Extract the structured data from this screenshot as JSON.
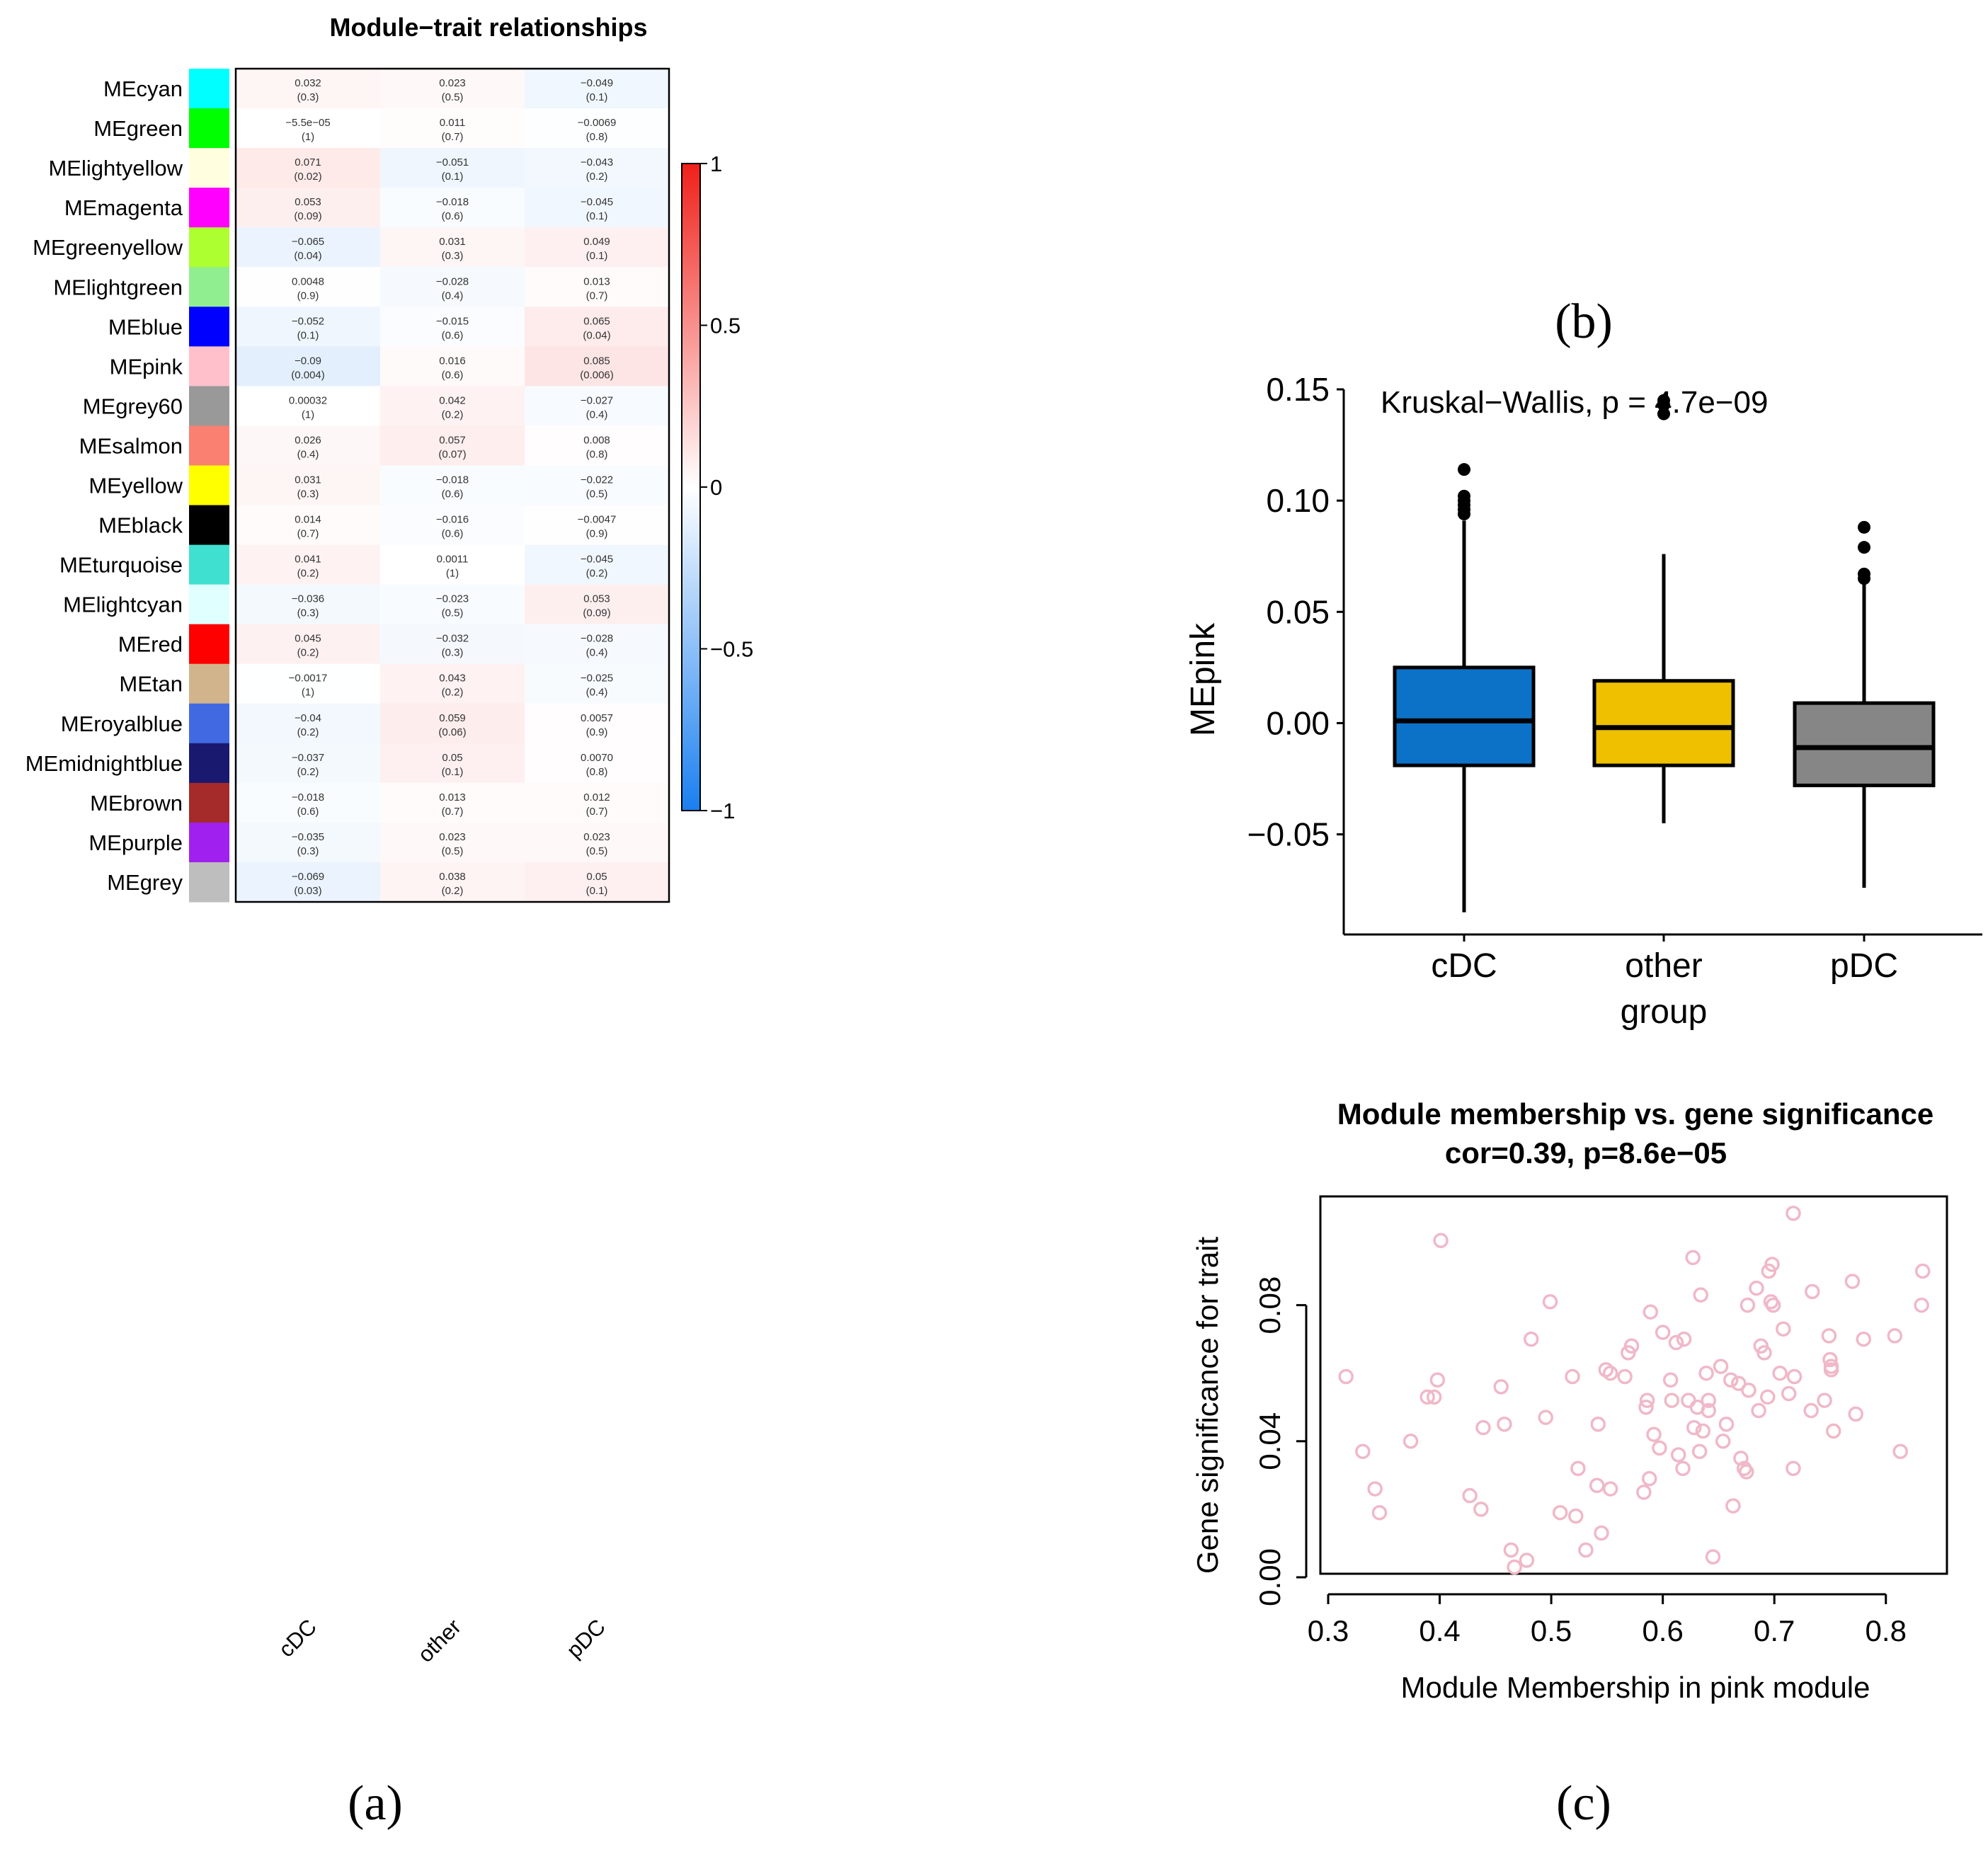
{
  "panels": {
    "a": "(a)",
    "b": "(b)",
    "c": "(c)"
  },
  "heatmap": {
    "title": "Module−trait relationships",
    "columns": [
      "cDC",
      "other",
      "pDC"
    ],
    "colorbar_ticks": [
      "1",
      "0.5",
      "0",
      "−0.5",
      "−1"
    ],
    "colorbar_values": [
      1,
      0.5,
      0,
      -0.5,
      -1
    ],
    "scale_colors": {
      "negative": "#1a7ff0",
      "zero": "#ffffff",
      "positive": "#f0201a"
    },
    "rows": [
      {
        "module": "MEcyan",
        "color": "#00ffff",
        "cells": [
          [
            "0.032",
            "(0.3)"
          ],
          [
            "0.023",
            "(0.5)"
          ],
          [
            "−0.049",
            "(0.1)"
          ]
        ],
        "values": [
          0.032,
          0.023,
          -0.049
        ]
      },
      {
        "module": "MEgreen",
        "color": "#00ff00",
        "cells": [
          [
            "−5.5e−05",
            "(1)"
          ],
          [
            "0.011",
            "(0.7)"
          ],
          [
            "−0.0069",
            "(0.8)"
          ]
        ],
        "values": [
          -5.5e-05,
          0.011,
          -0.0069
        ]
      },
      {
        "module": "MElightyellow",
        "color": "#ffffe0",
        "cells": [
          [
            "0.071",
            "(0.02)"
          ],
          [
            "−0.051",
            "(0.1)"
          ],
          [
            "−0.043",
            "(0.2)"
          ]
        ],
        "values": [
          0.071,
          -0.051,
          -0.043
        ]
      },
      {
        "module": "MEmagenta",
        "color": "#ff00ff",
        "cells": [
          [
            "0.053",
            "(0.09)"
          ],
          [
            "−0.018",
            "(0.6)"
          ],
          [
            "−0.045",
            "(0.1)"
          ]
        ],
        "values": [
          0.053,
          -0.018,
          -0.045
        ]
      },
      {
        "module": "MEgreenyellow",
        "color": "#adff2f",
        "cells": [
          [
            "−0.065",
            "(0.04)"
          ],
          [
            "0.031",
            "(0.3)"
          ],
          [
            "0.049",
            "(0.1)"
          ]
        ],
        "values": [
          -0.065,
          0.031,
          0.049
        ]
      },
      {
        "module": "MElightgreen",
        "color": "#90ee90",
        "cells": [
          [
            "0.0048",
            "(0.9)"
          ],
          [
            "−0.028",
            "(0.4)"
          ],
          [
            "0.013",
            "(0.7)"
          ]
        ],
        "values": [
          0.0048,
          -0.028,
          0.013
        ]
      },
      {
        "module": "MEblue",
        "color": "#0000ff",
        "cells": [
          [
            "−0.052",
            "(0.1)"
          ],
          [
            "−0.015",
            "(0.6)"
          ],
          [
            "0.065",
            "(0.04)"
          ]
        ],
        "values": [
          -0.052,
          -0.015,
          0.065
        ]
      },
      {
        "module": "MEpink",
        "color": "#ffc0cb",
        "cells": [
          [
            "−0.09",
            "(0.004)"
          ],
          [
            "0.016",
            "(0.6)"
          ],
          [
            "0.085",
            "(0.006)"
          ]
        ],
        "values": [
          -0.09,
          0.016,
          0.085
        ]
      },
      {
        "module": "MEgrey60",
        "color": "#999999",
        "cells": [
          [
            "0.00032",
            "(1)"
          ],
          [
            "0.042",
            "(0.2)"
          ],
          [
            "−0.027",
            "(0.4)"
          ]
        ],
        "values": [
          0.00032,
          0.042,
          -0.027
        ]
      },
      {
        "module": "MEsalmon",
        "color": "#fa8072",
        "cells": [
          [
            "0.026",
            "(0.4)"
          ],
          [
            "0.057",
            "(0.07)"
          ],
          [
            "0.008",
            "(0.8)"
          ]
        ],
        "values": [
          0.026,
          0.057,
          0.008
        ]
      },
      {
        "module": "MEyellow",
        "color": "#ffff00",
        "cells": [
          [
            "0.031",
            "(0.3)"
          ],
          [
            "−0.018",
            "(0.6)"
          ],
          [
            "−0.022",
            "(0.5)"
          ]
        ],
        "values": [
          0.031,
          -0.018,
          -0.022
        ]
      },
      {
        "module": "MEblack",
        "color": "#000000",
        "cells": [
          [
            "0.014",
            "(0.7)"
          ],
          [
            "−0.016",
            "(0.6)"
          ],
          [
            "−0.0047",
            "(0.9)"
          ]
        ],
        "values": [
          0.014,
          -0.016,
          -0.0047
        ]
      },
      {
        "module": "MEturquoise",
        "color": "#40e0d0",
        "cells": [
          [
            "0.041",
            "(0.2)"
          ],
          [
            "0.0011",
            "(1)"
          ],
          [
            "−0.045",
            "(0.2)"
          ]
        ],
        "values": [
          0.041,
          0.0011,
          -0.045
        ]
      },
      {
        "module": "MElightcyan",
        "color": "#e0ffff",
        "cells": [
          [
            "−0.036",
            "(0.3)"
          ],
          [
            "−0.023",
            "(0.5)"
          ],
          [
            "0.053",
            "(0.09)"
          ]
        ],
        "values": [
          -0.036,
          -0.023,
          0.053
        ]
      },
      {
        "module": "MEred",
        "color": "#ff0000",
        "cells": [
          [
            "0.045",
            "(0.2)"
          ],
          [
            "−0.032",
            "(0.3)"
          ],
          [
            "−0.028",
            "(0.4)"
          ]
        ],
        "values": [
          0.045,
          -0.032,
          -0.028
        ]
      },
      {
        "module": "MEtan",
        "color": "#d2b48c",
        "cells": [
          [
            "−0.0017",
            "(1)"
          ],
          [
            "0.043",
            "(0.2)"
          ],
          [
            "−0.025",
            "(0.4)"
          ]
        ],
        "values": [
          -0.0017,
          0.043,
          -0.025
        ]
      },
      {
        "module": "MEroyalblue",
        "color": "#4169e1",
        "cells": [
          [
            "−0.04",
            "(0.2)"
          ],
          [
            "0.059",
            "(0.06)"
          ],
          [
            "0.0057",
            "(0.9)"
          ]
        ],
        "values": [
          -0.04,
          0.059,
          0.0057
        ]
      },
      {
        "module": "MEmidnightblue",
        "color": "#191970",
        "cells": [
          [
            "−0.037",
            "(0.2)"
          ],
          [
            "0.05",
            "(0.1)"
          ],
          [
            "0.0070",
            "(0.8)"
          ]
        ],
        "values": [
          -0.037,
          0.05,
          0.007
        ]
      },
      {
        "module": "MEbrown",
        "color": "#a52a2a",
        "cells": [
          [
            "−0.018",
            "(0.6)"
          ],
          [
            "0.013",
            "(0.7)"
          ],
          [
            "0.012",
            "(0.7)"
          ]
        ],
        "values": [
          -0.018,
          0.013,
          0.012
        ]
      },
      {
        "module": "MEpurple",
        "color": "#a020f0",
        "cells": [
          [
            "−0.035",
            "(0.3)"
          ],
          [
            "0.023",
            "(0.5)"
          ],
          [
            "0.023",
            "(0.5)"
          ]
        ],
        "values": [
          -0.035,
          0.023,
          0.023
        ]
      },
      {
        "module": "MEgrey",
        "color": "#bebebe",
        "cells": [
          [
            "−0.069",
            "(0.03)"
          ],
          [
            "0.038",
            "(0.2)"
          ],
          [
            "0.05",
            "(0.1)"
          ]
        ],
        "values": [
          -0.069,
          0.038,
          0.05
        ]
      }
    ]
  },
  "chart_data": [
    {
      "type": "heatmap",
      "title": "Module−trait relationships",
      "x_categories": [
        "cDC",
        "other",
        "pDC"
      ],
      "colorbar_range": [
        -1,
        1
      ]
    },
    {
      "type": "box",
      "annotation": "Kruskal−Wallis, p = 4.7e−09",
      "xlabel": "group",
      "ylabel": "MEpink",
      "ylim": [
        -0.095,
        0.15
      ],
      "yticks": [
        0.15,
        0.1,
        0.05,
        0.0,
        -0.05
      ],
      "ytick_labels": [
        "0.15",
        "0.10",
        "0.05",
        "0.00",
        "−0.05"
      ],
      "categories": [
        "cDC",
        "other",
        "pDC"
      ],
      "boxes": [
        {
          "name": "cDC",
          "color": "#0c72c8",
          "whisker_low": -0.085,
          "q1": -0.019,
          "median": 0.001,
          "q3": 0.025,
          "whisker_high": 0.091,
          "outliers": [
            0.094,
            0.096,
            0.098,
            0.1,
            0.102,
            0.114
          ]
        },
        {
          "name": "other",
          "color": "#eec000",
          "whisker_low": -0.045,
          "q1": -0.019,
          "median": -0.002,
          "q3": 0.019,
          "whisker_high": 0.076,
          "outliers": [
            0.139,
            0.143,
            0.145
          ]
        },
        {
          "name": "pDC",
          "color": "#868686",
          "whisker_low": -0.074,
          "q1": -0.028,
          "median": -0.011,
          "q3": 0.009,
          "whisker_high": 0.063,
          "outliers": [
            0.065,
            0.067,
            0.079,
            0.088
          ]
        }
      ]
    },
    {
      "type": "scatter",
      "title": "Module membership vs. gene significance",
      "subtitle": "cor=0.39, p=8.6e−05",
      "xlabel": "Module Membership in pink module",
      "ylabel": "Gene significance for trait",
      "xlim": [
        0.3,
        0.85
      ],
      "ylim": [
        -0.002,
        0.11
      ],
      "xticks": [
        0.3,
        0.4,
        0.5,
        0.6,
        0.7,
        0.8
      ],
      "xtick_labels": [
        "0.3",
        "0.4",
        "0.5",
        "0.6",
        "0.7",
        "0.8"
      ],
      "yticks": [
        0.0,
        0.04,
        0.08
      ],
      "ytick_labels": [
        "0.00",
        "0.04",
        "0.08"
      ],
      "point_color": "#f0b8c8",
      "points": [
        [
          0.316,
          0.059
        ],
        [
          0.331,
          0.037
        ],
        [
          0.342,
          0.026
        ],
        [
          0.346,
          0.019
        ],
        [
          0.374,
          0.04
        ],
        [
          0.389,
          0.053
        ],
        [
          0.395,
          0.053
        ],
        [
          0.398,
          0.058
        ],
        [
          0.401,
          0.099
        ],
        [
          0.427,
          0.024
        ],
        [
          0.437,
          0.02
        ],
        [
          0.439,
          0.044
        ],
        [
          0.455,
          0.056
        ],
        [
          0.458,
          0.045
        ],
        [
          0.464,
          0.008
        ],
        [
          0.467,
          0.003
        ],
        [
          0.478,
          0.005
        ],
        [
          0.482,
          0.07
        ],
        [
          0.495,
          0.047
        ],
        [
          0.499,
          0.081
        ],
        [
          0.508,
          0.019
        ],
        [
          0.519,
          0.059
        ],
        [
          0.522,
          0.018
        ],
        [
          0.524,
          0.032
        ],
        [
          0.531,
          0.008
        ],
        [
          0.541,
          0.027
        ],
        [
          0.542,
          0.045
        ],
        [
          0.545,
          0.013
        ],
        [
          0.549,
          0.061
        ],
        [
          0.553,
          0.06
        ],
        [
          0.553,
          0.026
        ],
        [
          0.566,
          0.059
        ],
        [
          0.569,
          0.066
        ],
        [
          0.572,
          0.068
        ],
        [
          0.583,
          0.025
        ],
        [
          0.585,
          0.05
        ],
        [
          0.586,
          0.052
        ],
        [
          0.588,
          0.029
        ],
        [
          0.589,
          0.078
        ],
        [
          0.592,
          0.042
        ],
        [
          0.597,
          0.038
        ],
        [
          0.6,
          0.072
        ],
        [
          0.607,
          0.058
        ],
        [
          0.608,
          0.052
        ],
        [
          0.612,
          0.069
        ],
        [
          0.614,
          0.036
        ],
        [
          0.618,
          0.032
        ],
        [
          0.619,
          0.07
        ],
        [
          0.623,
          0.052
        ],
        [
          0.627,
          0.094
        ],
        [
          0.628,
          0.044
        ],
        [
          0.631,
          0.05
        ],
        [
          0.633,
          0.037
        ],
        [
          0.634,
          0.083
        ],
        [
          0.636,
          0.043
        ],
        [
          0.639,
          0.06
        ],
        [
          0.641,
          0.052
        ],
        [
          0.641,
          0.049
        ],
        [
          0.645,
          0.006
        ],
        [
          0.652,
          0.062
        ],
        [
          0.654,
          0.04
        ],
        [
          0.657,
          0.045
        ],
        [
          0.661,
          0.058
        ],
        [
          0.663,
          0.021
        ],
        [
          0.668,
          0.057
        ],
        [
          0.67,
          0.035
        ],
        [
          0.673,
          0.032
        ],
        [
          0.675,
          0.031
        ],
        [
          0.676,
          0.08
        ],
        [
          0.677,
          0.055
        ],
        [
          0.684,
          0.085
        ],
        [
          0.686,
          0.049
        ],
        [
          0.688,
          0.068
        ],
        [
          0.691,
          0.066
        ],
        [
          0.694,
          0.053
        ],
        [
          0.695,
          0.09
        ],
        [
          0.697,
          0.081
        ],
        [
          0.698,
          0.092
        ],
        [
          0.699,
          0.08
        ],
        [
          0.705,
          0.06
        ],
        [
          0.708,
          0.073
        ],
        [
          0.713,
          0.054
        ],
        [
          0.717,
          0.032
        ],
        [
          0.717,
          0.107
        ],
        [
          0.718,
          0.059
        ],
        [
          0.733,
          0.049
        ],
        [
          0.734,
          0.084
        ],
        [
          0.745,
          0.052
        ],
        [
          0.749,
          0.071
        ],
        [
          0.75,
          0.064
        ],
        [
          0.751,
          0.062
        ],
        [
          0.751,
          0.061
        ],
        [
          0.753,
          0.043
        ],
        [
          0.77,
          0.087
        ],
        [
          0.773,
          0.048
        ],
        [
          0.78,
          0.07
        ],
        [
          0.808,
          0.071
        ],
        [
          0.813,
          0.037
        ],
        [
          0.832,
          0.08
        ],
        [
          0.833,
          0.09
        ]
      ]
    }
  ]
}
